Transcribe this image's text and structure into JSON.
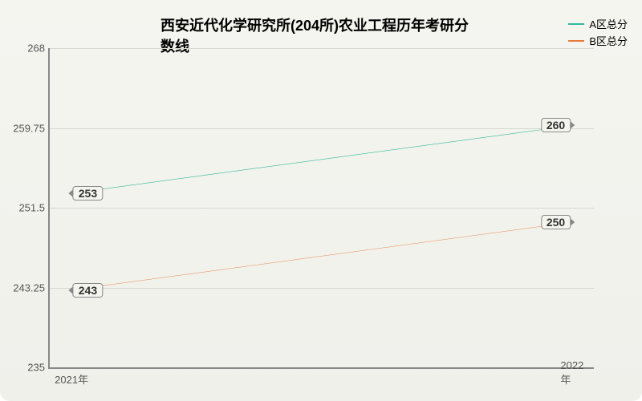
{
  "chart": {
    "type": "line",
    "title": "西安近代化学研究所(204所)农业工程历年考研分数线",
    "title_fontsize": 18,
    "background_gradient": [
      "#f5f5f0",
      "#f0f0eb"
    ],
    "axis_color": "#888888",
    "grid_color": "#d8d8d0",
    "label_color": "#555555",
    "ylim": [
      235,
      268
    ],
    "yticks": [
      235,
      243.25,
      251.5,
      259.75,
      268
    ],
    "xticks": [
      "2021年",
      "2022年"
    ],
    "label_fontsize": 13,
    "point_label_fontsize": 14,
    "series": [
      {
        "name": "A区总分",
        "color": "#2fb89a",
        "line_width": 2,
        "values": [
          253,
          260
        ],
        "point_labels": [
          "253",
          "260"
        ]
      },
      {
        "name": "B区总分",
        "color": "#e67a3c",
        "line_width": 1.5,
        "values": [
          243,
          250
        ],
        "point_labels": [
          "243",
          "250"
        ]
      }
    ],
    "legend": {
      "position": "top-right",
      "fontsize": 13
    }
  }
}
